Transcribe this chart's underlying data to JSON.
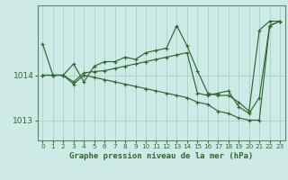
{
  "background_color": "#ceeae7",
  "grid_color": "#add4d0",
  "line_color": "#2d6a2d",
  "marker_color": "#2d6a2d",
  "title": "Graphe pression niveau de la mer (hPa)",
  "yticks": [
    1013,
    1014
  ],
  "ylim": [
    1012.55,
    1015.55
  ],
  "xlim": [
    -0.5,
    23.5
  ],
  "series": [
    [
      1014.7,
      1014.0,
      1014.0,
      1014.25,
      1013.85,
      1014.2,
      1014.3,
      1014.3,
      1014.4,
      1014.35,
      1014.5,
      1014.55,
      1014.6,
      1015.1,
      1014.65,
      1014.1,
      1013.6,
      1013.55,
      1013.55,
      1013.4,
      1013.2,
      1015.0,
      1015.2,
      1015.2
    ],
    [
      1014.0,
      1014.0,
      1014.0,
      1013.85,
      1014.05,
      1014.08,
      1014.1,
      1014.15,
      1014.2,
      1014.25,
      1014.3,
      1014.35,
      1014.4,
      1014.45,
      1014.5,
      1013.6,
      1013.55,
      1013.6,
      1013.65,
      1013.3,
      1013.15,
      1013.5,
      1015.1,
      1015.2
    ],
    [
      1014.0,
      1014.0,
      1014.0,
      1013.8,
      1014.0,
      1013.95,
      1013.9,
      1013.85,
      1013.8,
      1013.75,
      1013.7,
      1013.65,
      1013.6,
      1013.55,
      1013.5,
      1013.4,
      1013.35,
      1013.2,
      1013.15,
      1013.05,
      1013.0,
      1013.0,
      1015.1,
      1015.2
    ]
  ]
}
